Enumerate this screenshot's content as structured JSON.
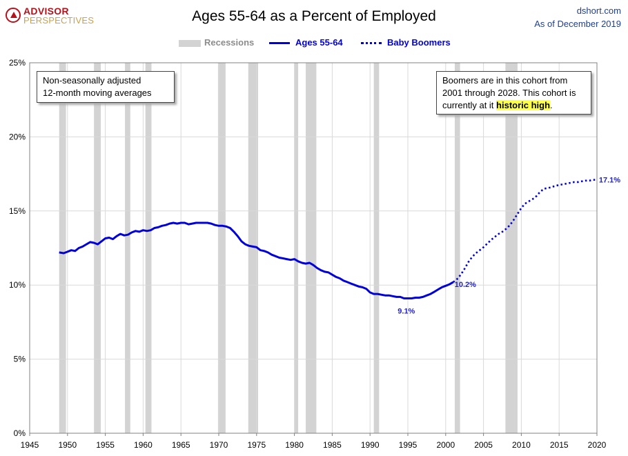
{
  "brand": {
    "line1": "ADVISOR",
    "line2": "PERSPECTIVES"
  },
  "title": "Ages 55-64 as a Percent of Employed",
  "source": {
    "site": "dshort.com",
    "asof": "As of December 2019"
  },
  "legend": {
    "recessions": "Recessions",
    "solid": "Ages 55-64",
    "dotted": "Baby Boomers"
  },
  "note_left": {
    "line1": "Non-seasonally adjusted",
    "line2": "12-month moving averages"
  },
  "note_right": {
    "line1": "Boomers are in this cohort from",
    "line2": "2001  through 2028.  This cohort is",
    "line3_pre": "currently at it ",
    "line3_hl": "historic high",
    "line3_post": "."
  },
  "colors": {
    "series": "#0000dd",
    "recession": "#d3d3d3",
    "label": "#2323c8"
  },
  "chart_data": {
    "type": "line",
    "xlim": [
      1945,
      2020
    ],
    "ylim": [
      0,
      25
    ],
    "x_ticks": [
      1945,
      1950,
      1955,
      1960,
      1965,
      1970,
      1975,
      1980,
      1985,
      1990,
      1995,
      2000,
      2005,
      2010,
      2015,
      2020
    ],
    "y_ticks": [
      0,
      5,
      10,
      15,
      20,
      25
    ],
    "y_tick_labels": [
      "0%",
      "5%",
      "10%",
      "15%",
      "20%",
      "25%"
    ],
    "grid": true,
    "legend_position": "top-center",
    "recessions": [
      [
        1948.9,
        1949.8
      ],
      [
        1953.5,
        1954.4
      ],
      [
        1957.6,
        1958.3
      ],
      [
        1960.3,
        1961.1
      ],
      [
        1969.9,
        1970.9
      ],
      [
        1973.9,
        1975.2
      ],
      [
        1980.0,
        1980.5
      ],
      [
        1981.5,
        1982.9
      ],
      [
        1990.5,
        1991.2
      ],
      [
        2001.2,
        2001.9
      ],
      [
        2007.9,
        2009.5
      ]
    ],
    "series": [
      {
        "name": "Ages 55-64",
        "style": "solid",
        "x": [
          1948.9,
          1949.5,
          1950,
          1950.5,
          1951,
          1951.5,
          1952,
          1952.5,
          1953,
          1953.5,
          1954,
          1954.5,
          1955,
          1955.5,
          1956,
          1956.5,
          1957,
          1957.5,
          1958,
          1958.5,
          1959,
          1959.5,
          1960,
          1960.5,
          1961,
          1961.5,
          1962,
          1962.5,
          1963,
          1963.5,
          1964,
          1964.5,
          1965,
          1965.5,
          1966,
          1966.5,
          1967,
          1967.5,
          1968,
          1968.5,
          1969,
          1969.5,
          1970,
          1970.5,
          1971,
          1971.5,
          1972,
          1972.5,
          1973,
          1973.5,
          1974,
          1974.5,
          1975,
          1975.5,
          1976,
          1976.5,
          1977,
          1977.5,
          1978,
          1978.5,
          1979,
          1979.5,
          1980,
          1980.5,
          1981,
          1981.5,
          1982,
          1982.5,
          1983,
          1983.5,
          1984,
          1984.5,
          1985,
          1985.5,
          1986,
          1986.5,
          1987,
          1987.5,
          1988,
          1988.5,
          1989,
          1989.5,
          1990,
          1990.5,
          1991,
          1991.5,
          1992,
          1992.5,
          1993,
          1993.5,
          1994,
          1994.5,
          1995,
          1995.5,
          1996,
          1996.5,
          1997,
          1997.5,
          1998,
          1998.5,
          1999,
          1999.5,
          2000,
          2000.5,
          2001
        ],
        "y": [
          12.2,
          12.15,
          12.25,
          12.35,
          12.3,
          12.5,
          12.6,
          12.75,
          12.9,
          12.85,
          12.75,
          12.95,
          13.15,
          13.2,
          13.1,
          13.3,
          13.45,
          13.35,
          13.4,
          13.55,
          13.65,
          13.6,
          13.7,
          13.65,
          13.7,
          13.85,
          13.9,
          14.0,
          14.05,
          14.15,
          14.2,
          14.15,
          14.2,
          14.2,
          14.1,
          14.15,
          14.2,
          14.2,
          14.2,
          14.2,
          14.15,
          14.05,
          14.0,
          14.0,
          13.95,
          13.85,
          13.6,
          13.3,
          12.95,
          12.75,
          12.65,
          12.6,
          12.55,
          12.35,
          12.3,
          12.2,
          12.05,
          11.95,
          11.85,
          11.8,
          11.75,
          11.7,
          11.75,
          11.6,
          11.5,
          11.45,
          11.5,
          11.35,
          11.15,
          11.0,
          10.9,
          10.85,
          10.7,
          10.55,
          10.45,
          10.3,
          10.2,
          10.1,
          10.0,
          9.9,
          9.85,
          9.75,
          9.5,
          9.4,
          9.4,
          9.35,
          9.3,
          9.3,
          9.25,
          9.2,
          9.2,
          9.1,
          9.1,
          9.1,
          9.15,
          9.15,
          9.2,
          9.3,
          9.4,
          9.55,
          9.7,
          9.85,
          9.95,
          10.05,
          10.2
        ]
      },
      {
        "name": "Baby Boomers",
        "style": "dotted",
        "x": [
          2001,
          2001.5,
          2002,
          2002.5,
          2003,
          2003.5,
          2004,
          2004.5,
          2005,
          2005.5,
          2006,
          2006.5,
          2007,
          2007.5,
          2008,
          2008.5,
          2009,
          2009.5,
          2010,
          2010.5,
          2011,
          2011.5,
          2012,
          2012.5,
          2013,
          2013.5,
          2014,
          2014.5,
          2015,
          2015.5,
          2016,
          2016.5,
          2017,
          2017.5,
          2018,
          2018.5,
          2019,
          2019.5,
          2019.9
        ],
        "y": [
          10.2,
          10.4,
          10.7,
          11.1,
          11.55,
          11.9,
          12.15,
          12.35,
          12.55,
          12.8,
          13.05,
          13.25,
          13.45,
          13.6,
          13.8,
          14.05,
          14.4,
          14.8,
          15.2,
          15.5,
          15.65,
          15.8,
          16.0,
          16.3,
          16.5,
          16.55,
          16.6,
          16.7,
          16.75,
          16.8,
          16.85,
          16.9,
          16.95,
          16.95,
          17.0,
          17.05,
          17.05,
          17.1,
          17.1
        ]
      }
    ],
    "annotations": [
      {
        "text": "9.1%",
        "x": 1994.8,
        "y": 9.1
      },
      {
        "text": "10.2%",
        "x": 2001,
        "y": 10.2
      },
      {
        "text": "17.1%",
        "x": 2019.9,
        "y": 17.1
      }
    ]
  }
}
